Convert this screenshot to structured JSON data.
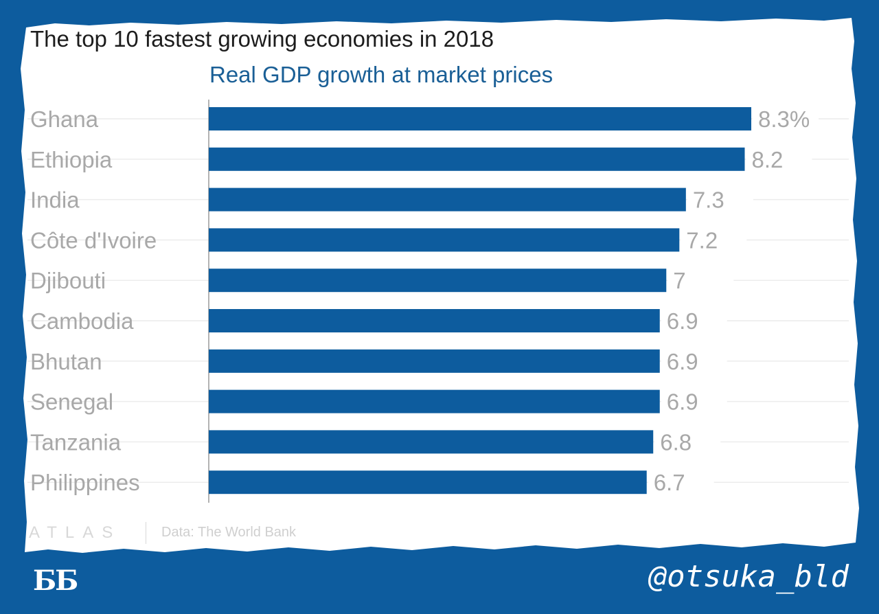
{
  "chart_data": {
    "type": "bar",
    "orientation": "horizontal",
    "title": "The top 10 fastest growing economies in 2018",
    "subtitle": "Real GDP growth at market prices",
    "categories": [
      "Ghana",
      "Ethiopia",
      "India",
      "Côte d'Ivoire",
      "Djibouti",
      "Cambodia",
      "Bhutan",
      "Senegal",
      "Tanzania",
      "Philippines"
    ],
    "values": [
      8.3,
      8.2,
      7.3,
      7.2,
      7.0,
      6.9,
      6.9,
      6.9,
      6.8,
      6.7
    ],
    "value_labels": [
      "8.3%",
      "8.2",
      "7.3",
      "7.2",
      "7",
      "6.9",
      "6.9",
      "6.9",
      "6.8",
      "6.7"
    ],
    "xlim": [
      0,
      8.3
    ],
    "bar_color": "#0d5c9e",
    "grid": true
  },
  "footer": {
    "brand": "ATLAS",
    "source": "Data: The World Bank"
  },
  "overlay": {
    "logo": "ББ",
    "handle": "@otsuka_bld"
  },
  "colors": {
    "frame": "#0d5c9e",
    "card": "#ffffff",
    "bar": "#0d5c9e",
    "subtitle": "#1a5f96"
  }
}
